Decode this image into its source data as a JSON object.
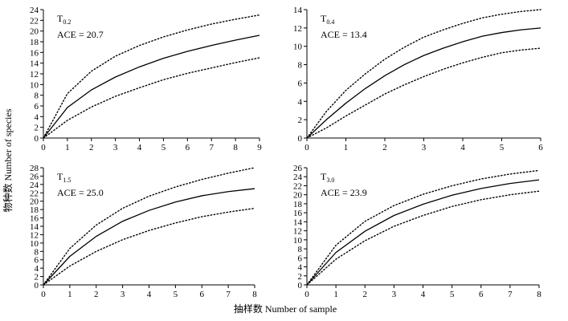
{
  "figure": {
    "ylabel": "物种数 Number of species",
    "xlabel": "抽样数 Number of sample"
  },
  "chart_data": [
    {
      "type": "line",
      "label_main": "T",
      "label_sub": "0.2",
      "ace": "ACE = 20.7",
      "xlim": [
        0,
        9
      ],
      "ylim": [
        0,
        24
      ],
      "xticks": [
        0,
        1,
        2,
        3,
        4,
        5,
        6,
        7,
        8,
        9
      ],
      "yticks": [
        0,
        2,
        4,
        6,
        8,
        10,
        12,
        14,
        16,
        18,
        20,
        22,
        24
      ],
      "series": [
        {
          "role": "upper",
          "style": "dotted",
          "x": [
            0,
            1,
            2,
            3,
            4,
            5,
            6,
            7,
            8,
            9
          ],
          "y": [
            0,
            8.3,
            12.5,
            15.3,
            17.3,
            18.9,
            20.2,
            21.3,
            22.2,
            23.0
          ]
        },
        {
          "role": "mean",
          "style": "solid",
          "x": [
            0,
            1,
            2,
            3,
            4,
            5,
            6,
            7,
            8,
            9
          ],
          "y": [
            0,
            5.7,
            9.0,
            11.4,
            13.3,
            14.9,
            16.2,
            17.3,
            18.3,
            19.2
          ]
        },
        {
          "role": "lower",
          "style": "dotted",
          "x": [
            0,
            1,
            2,
            3,
            4,
            5,
            6,
            7,
            8,
            9
          ],
          "y": [
            0,
            3.3,
            5.8,
            7.8,
            9.4,
            10.9,
            12.1,
            13.1,
            14.1,
            15.0
          ]
        }
      ]
    },
    {
      "type": "line",
      "label_main": "T",
      "label_sub": "0.4",
      "ace": "ACE = 13.4",
      "xlim": [
        0,
        6
      ],
      "ylim": [
        0,
        14
      ],
      "xticks": [
        0,
        1,
        2,
        3,
        4,
        5,
        6
      ],
      "yticks": [
        0,
        2,
        4,
        6,
        8,
        10,
        12,
        14
      ],
      "series": [
        {
          "role": "upper",
          "style": "dotted",
          "x": [
            0,
            0.5,
            1,
            1.5,
            2,
            2.5,
            3,
            3.5,
            4,
            4.5,
            5,
            5.5,
            6
          ],
          "y": [
            0,
            2.9,
            5.2,
            7.0,
            8.6,
            9.9,
            11.0,
            11.8,
            12.5,
            13.1,
            13.5,
            13.8,
            14.0
          ]
        },
        {
          "role": "mean",
          "style": "solid",
          "x": [
            0,
            0.5,
            1,
            1.5,
            2,
            2.5,
            3,
            3.5,
            4,
            4.5,
            5,
            5.5,
            6
          ],
          "y": [
            0,
            2.0,
            3.8,
            5.4,
            6.8,
            8.0,
            9.0,
            9.8,
            10.5,
            11.1,
            11.5,
            11.8,
            12.0
          ]
        },
        {
          "role": "lower",
          "style": "dotted",
          "x": [
            0,
            0.5,
            1,
            1.5,
            2,
            2.5,
            3,
            3.5,
            4,
            4.5,
            5,
            5.5,
            6
          ],
          "y": [
            0,
            1.1,
            2.4,
            3.6,
            4.8,
            5.8,
            6.7,
            7.5,
            8.2,
            8.8,
            9.3,
            9.6,
            9.8
          ]
        }
      ]
    },
    {
      "type": "line",
      "label_main": "T",
      "label_sub": "1.5",
      "ace": "ACE = 25.0",
      "xlim": [
        0,
        8
      ],
      "ylim": [
        0,
        28
      ],
      "xticks": [
        0,
        1,
        2,
        3,
        4,
        5,
        6,
        7,
        8
      ],
      "yticks": [
        0,
        2,
        4,
        6,
        8,
        10,
        12,
        14,
        16,
        18,
        20,
        22,
        24,
        26,
        28
      ],
      "series": [
        {
          "role": "upper",
          "style": "dotted",
          "x": [
            0,
            1,
            2,
            3,
            4,
            5,
            6,
            7,
            8
          ],
          "y": [
            0,
            8.7,
            14.3,
            18.3,
            21.2,
            23.4,
            25.2,
            26.7,
            28.0
          ]
        },
        {
          "role": "mean",
          "style": "solid",
          "x": [
            0,
            1,
            2,
            3,
            4,
            5,
            6,
            7,
            8
          ],
          "y": [
            0,
            6.8,
            11.6,
            15.2,
            17.8,
            19.8,
            21.3,
            22.3,
            23.0
          ]
        },
        {
          "role": "lower",
          "style": "dotted",
          "x": [
            0,
            1,
            2,
            3,
            4,
            5,
            6,
            7,
            8
          ],
          "y": [
            0,
            4.5,
            8.0,
            10.8,
            13.0,
            14.8,
            16.3,
            17.4,
            18.3
          ]
        }
      ]
    },
    {
      "type": "line",
      "label_main": "T",
      "label_sub": "3.0",
      "ace": "ACE = 23.9",
      "xlim": [
        0,
        8
      ],
      "ylim": [
        0,
        26
      ],
      "xticks": [
        0,
        1,
        2,
        3,
        4,
        5,
        6,
        7,
        8
      ],
      "yticks": [
        0,
        2,
        4,
        6,
        8,
        10,
        12,
        14,
        16,
        18,
        20,
        22,
        24,
        26
      ],
      "series": [
        {
          "role": "upper",
          "style": "dotted",
          "x": [
            0,
            1,
            2,
            3,
            4,
            5,
            6,
            7,
            8
          ],
          "y": [
            0,
            8.8,
            14.1,
            17.6,
            20.1,
            22.0,
            23.5,
            24.6,
            25.4
          ]
        },
        {
          "role": "mean",
          "style": "solid",
          "x": [
            0,
            1,
            2,
            3,
            4,
            5,
            6,
            7,
            8
          ],
          "y": [
            0,
            7.2,
            11.9,
            15.4,
            17.9,
            19.9,
            21.4,
            22.5,
            23.3
          ]
        },
        {
          "role": "lower",
          "style": "dotted",
          "x": [
            0,
            1,
            2,
            3,
            4,
            5,
            6,
            7,
            8
          ],
          "y": [
            0,
            5.7,
            9.8,
            13.0,
            15.4,
            17.4,
            18.9,
            20.0,
            20.8
          ]
        }
      ]
    }
  ]
}
